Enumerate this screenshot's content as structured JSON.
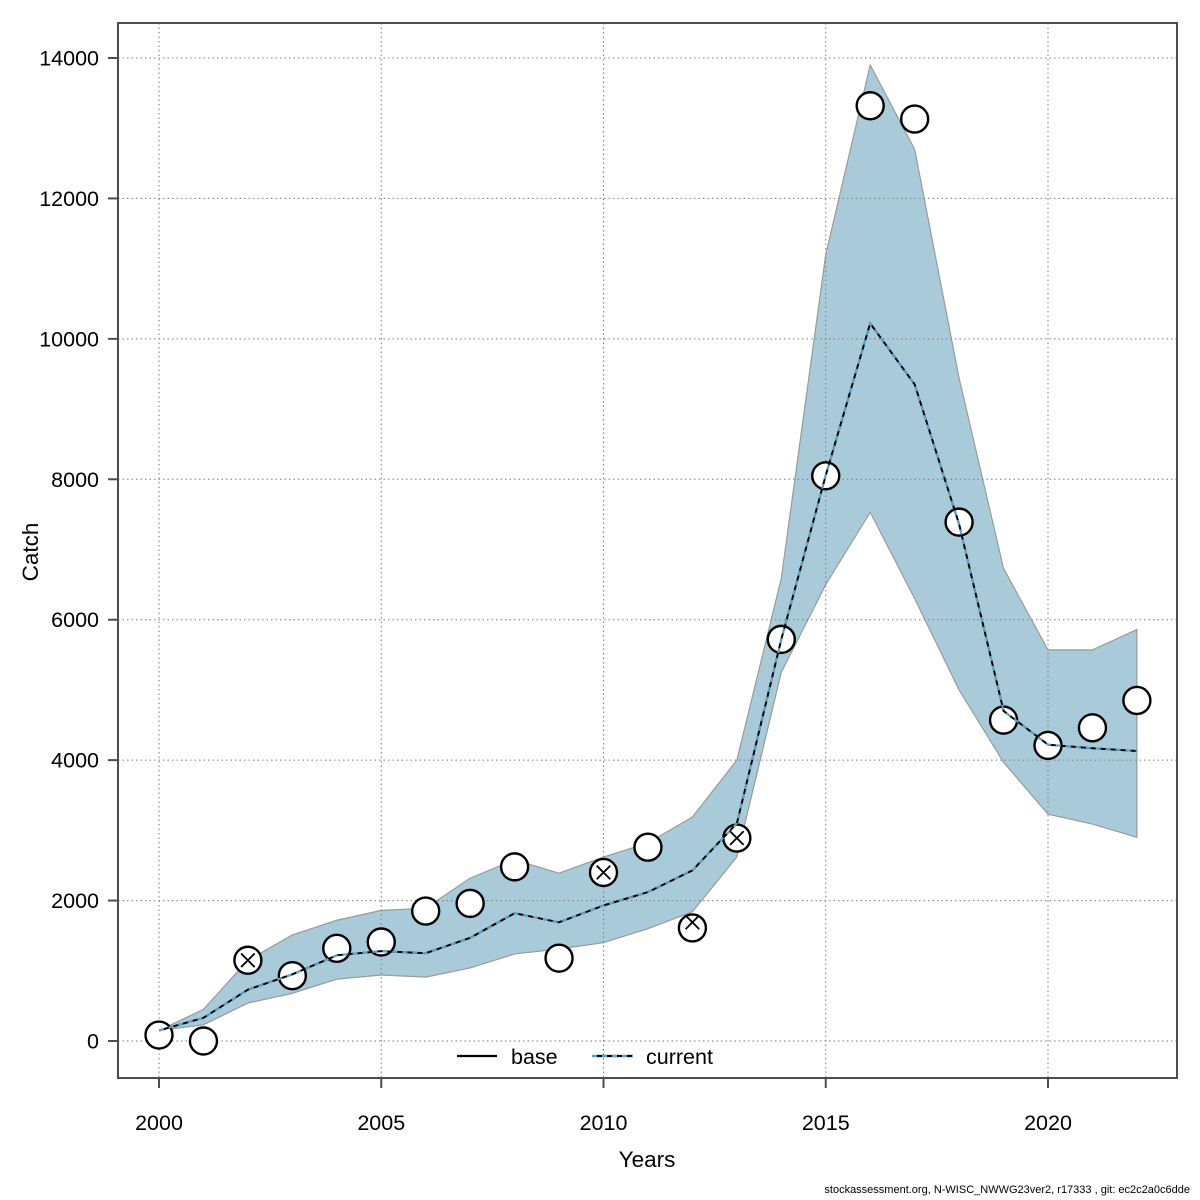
{
  "footer": {
    "text": "stockassessment.org, N-WISC_NWWG23ver2, r17333 , git: ec2c2a0c6dde"
  },
  "chart_data": {
    "type": "line",
    "title": "",
    "xlabel": "Years",
    "ylabel": "Catch",
    "x_ticks": [
      2000,
      2005,
      2010,
      2015,
      2020
    ],
    "y_ticks": [
      0,
      2000,
      4000,
      6000,
      8000,
      10000,
      12000,
      14000
    ],
    "xlim": [
      1999.1,
      2022.9
    ],
    "ylim": [
      -800,
      14550
    ],
    "grid": "dotted",
    "legend": [
      {
        "label": "base",
        "style": "solid-black-line"
      },
      {
        "label": "current",
        "style": "blue-dashed-line"
      }
    ],
    "years": [
      2000,
      2001,
      2002,
      2003,
      2004,
      2005,
      2006,
      2007,
      2008,
      2009,
      2010,
      2011,
      2012,
      2013,
      2014,
      2015,
      2016,
      2017,
      2018,
      2019,
      2020,
      2021,
      2022
    ],
    "series": [
      {
        "name": "current",
        "values": [
          150,
          330,
          730,
          950,
          1220,
          1280,
          1250,
          1470,
          1820,
          1690,
          1930,
          2120,
          2430,
          3100,
          5720,
          8060,
          10220,
          9350,
          7360,
          4700,
          4220,
          4170,
          4130
        ]
      }
    ],
    "band": {
      "name": "confidence-interval",
      "upper": [
        150,
        450,
        1150,
        1510,
        1720,
        1860,
        1890,
        2320,
        2580,
        2390,
        2620,
        2820,
        3190,
        4000,
        6590,
        11200,
        13900,
        12700,
        9440,
        6730,
        5570,
        5570,
        5860
      ],
      "lower": [
        150,
        230,
        540,
        680,
        880,
        940,
        910,
        1040,
        1240,
        1310,
        1400,
        1600,
        1840,
        2620,
        5250,
        6500,
        7530,
        6300,
        5000,
        3970,
        3230,
        3090,
        2900
      ]
    },
    "observations": [
      {
        "year": 2000,
        "value": 85,
        "cross": false
      },
      {
        "year": 2001,
        "value": 0,
        "cross": false
      },
      {
        "year": 2002,
        "value": 1150,
        "cross": true
      },
      {
        "year": 2003,
        "value": 930,
        "cross": false
      },
      {
        "year": 2004,
        "value": 1320,
        "cross": false
      },
      {
        "year": 2005,
        "value": 1410,
        "cross": false
      },
      {
        "year": 2006,
        "value": 1850,
        "cross": false
      },
      {
        "year": 2007,
        "value": 1960,
        "cross": false
      },
      {
        "year": 2008,
        "value": 2480,
        "cross": false
      },
      {
        "year": 2009,
        "value": 1180,
        "cross": false
      },
      {
        "year": 2010,
        "value": 2400,
        "cross": true
      },
      {
        "year": 2011,
        "value": 2760,
        "cross": false
      },
      {
        "year": 2012,
        "value": 1610,
        "cross": true,
        "cross_value": 1690
      },
      {
        "year": 2013,
        "value": 2890,
        "cross": true
      },
      {
        "year": 2014,
        "value": 5720,
        "cross": false
      },
      {
        "year": 2015,
        "value": 8050,
        "cross": false
      },
      {
        "year": 2016,
        "value": 13320,
        "cross": false
      },
      {
        "year": 2017,
        "value": 13130,
        "cross": false
      },
      {
        "year": 2018,
        "value": 7390,
        "cross": false
      },
      {
        "year": 2019,
        "value": 4570,
        "cross": false
      },
      {
        "year": 2020,
        "value": 4210,
        "cross": false
      },
      {
        "year": 2021,
        "value": 4460,
        "cross": false
      },
      {
        "year": 2022,
        "value": 4850,
        "cross": false
      }
    ],
    "colors": {
      "band_fill": "#a9cbd9",
      "band_edge": "#9a9a9a",
      "base_line": "#000000",
      "current_line": "#5ba4cf",
      "grid": "#7a7a7a",
      "axis": "#4d4d4d",
      "point_stroke": "#000000",
      "point_fill": "#ffffff",
      "text": "#000000"
    }
  }
}
